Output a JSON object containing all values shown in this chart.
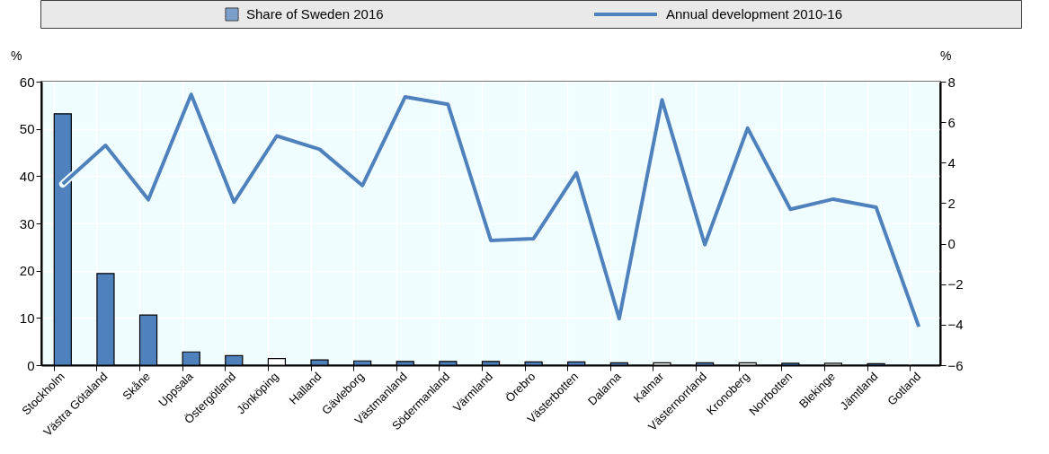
{
  "chart_data": {
    "type": "bar",
    "ylabel": "%",
    "y2label": "%",
    "categories": [
      "Stockholm",
      "Västra Götaland",
      "Skåne",
      "Uppsala",
      "Östergötland",
      "Jönköping",
      "Halland",
      "Gävleborg",
      "Västmanland",
      "Södermanland",
      "Värmland",
      "Örebro",
      "Västerbotten",
      "Dalarna",
      "Kalmar",
      "Västernorrland",
      "Kronoberg",
      "Norrbotten",
      "Blekinge",
      "Jämtland",
      "Gotland"
    ],
    "series": [
      {
        "name": "Share of Sweden 2016",
        "color": "#4f81bd",
        "colors": [
          "#4f81bd",
          "#4f81bd",
          "#4f81bd",
          "#4f81bd",
          "#4f81bd",
          "#ffffff",
          "#4f81bd",
          "#4f81bd",
          "#4f81bd",
          "#4f81bd",
          "#4f81bd",
          "#4f81bd",
          "#4f81bd",
          "#4f81bd",
          "#ffffff",
          "#4f81bd",
          "#ffffff",
          "#4f81bd",
          "#ffffff",
          "#4f81bd",
          "#4f81bd"
        ],
        "values": [
          53.2,
          19.4,
          10.6,
          2.8,
          2.0,
          1.4,
          1.1,
          0.9,
          0.8,
          0.8,
          0.8,
          0.7,
          0.7,
          0.5,
          0.5,
          0.5,
          0.5,
          0.4,
          0.4,
          0.3,
          null
        ]
      },
      {
        "name": "Annual development 2010-16",
        "type": "line",
        "axis": "y2",
        "color": "#4f81bd",
        "values": [
          2.95,
          4.85,
          2.17,
          7.37,
          2.05,
          5.32,
          4.66,
          2.87,
          7.25,
          6.88,
          0.16,
          0.25,
          3.5,
          -3.7,
          7.1,
          -0.05,
          5.7,
          1.7,
          2.2,
          1.8,
          -4.1
        ]
      }
    ],
    "ylim": [
      0,
      60
    ],
    "yticks": [
      0,
      10,
      20,
      30,
      40,
      50,
      60
    ],
    "y2lim": [
      -6,
      8
    ],
    "y2ticks": [
      -6,
      -4,
      -2,
      0,
      2,
      4,
      6,
      8
    ],
    "grid": true,
    "legend": "top"
  }
}
